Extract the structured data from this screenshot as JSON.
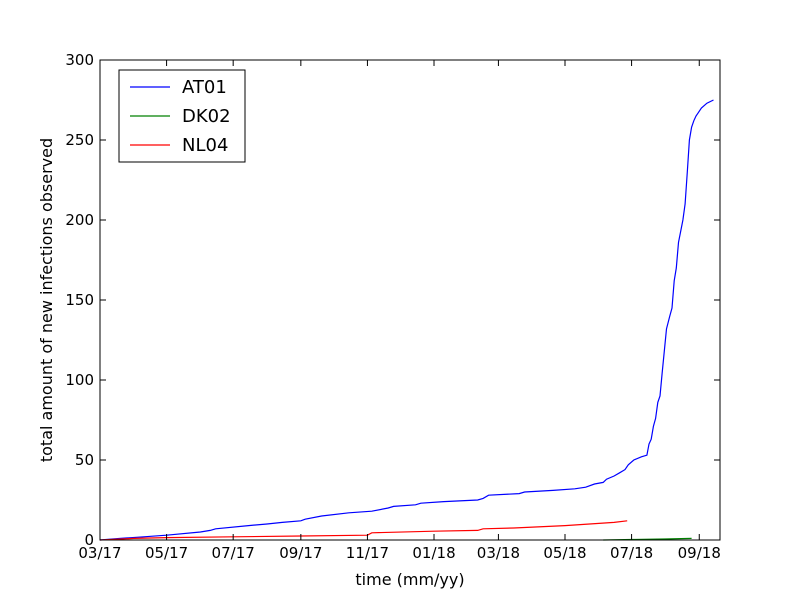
{
  "chart_data": {
    "type": "line",
    "title": "",
    "xlabel": "time (mm/yy)",
    "ylabel": "total amount of new infections observed",
    "x_axis": {
      "ticks": [
        "2017-03-01",
        "2017-05-01",
        "2017-07-01",
        "2017-09-01",
        "2017-11-01",
        "2018-01-01",
        "2018-03-01",
        "2018-05-01",
        "2018-07-01",
        "2018-09-01"
      ],
      "tick_labels": [
        "03/17",
        "05/17",
        "07/17",
        "09/17",
        "11/17",
        "01/18",
        "03/18",
        "05/18",
        "07/18",
        "09/18"
      ],
      "range": [
        "2017-03-01",
        "2018-09-20"
      ]
    },
    "y_axis": {
      "ticks": [
        0,
        50,
        100,
        150,
        200,
        250,
        300
      ],
      "tick_labels": [
        "0",
        "50",
        "100",
        "150",
        "200",
        "250",
        "300"
      ],
      "range": [
        0,
        300
      ]
    },
    "grid": false,
    "legend": {
      "placement": "top-left",
      "frame": true
    },
    "series": [
      {
        "name": "AT01",
        "color": "#0000ff",
        "points": [
          [
            "2017-03-01",
            0
          ],
          [
            "2017-03-20",
            1
          ],
          [
            "2017-04-10",
            2
          ],
          [
            "2017-05-01",
            3
          ],
          [
            "2017-06-01",
            5
          ],
          [
            "2017-06-10",
            6
          ],
          [
            "2017-06-15",
            7
          ],
          [
            "2017-07-15",
            9
          ],
          [
            "2017-08-01",
            10
          ],
          [
            "2017-08-15",
            11
          ],
          [
            "2017-09-01",
            12
          ],
          [
            "2017-09-05",
            13
          ],
          [
            "2017-09-20",
            15
          ],
          [
            "2017-10-15",
            17
          ],
          [
            "2017-11-05",
            18
          ],
          [
            "2017-11-20",
            20
          ],
          [
            "2017-11-25",
            21
          ],
          [
            "2017-12-15",
            22
          ],
          [
            "2017-12-20",
            23
          ],
          [
            "2018-01-10",
            24
          ],
          [
            "2018-02-10",
            25
          ],
          [
            "2018-02-15",
            26
          ],
          [
            "2018-02-20",
            28
          ],
          [
            "2018-03-20",
            29
          ],
          [
            "2018-03-25",
            30
          ],
          [
            "2018-04-20",
            31
          ],
          [
            "2018-05-10",
            32
          ],
          [
            "2018-05-20",
            33
          ],
          [
            "2018-05-28",
            35
          ],
          [
            "2018-06-05",
            36
          ],
          [
            "2018-06-08",
            38
          ],
          [
            "2018-06-15",
            40
          ],
          [
            "2018-06-20",
            42
          ],
          [
            "2018-06-25",
            44
          ],
          [
            "2018-06-28",
            47
          ],
          [
            "2018-07-03",
            50
          ],
          [
            "2018-07-10",
            52
          ],
          [
            "2018-07-15",
            53
          ],
          [
            "2018-07-17",
            60
          ],
          [
            "2018-07-19",
            63
          ],
          [
            "2018-07-21",
            71
          ],
          [
            "2018-07-23",
            76
          ],
          [
            "2018-07-25",
            86
          ],
          [
            "2018-07-27",
            90
          ],
          [
            "2018-07-29",
            104
          ],
          [
            "2018-07-31",
            118
          ],
          [
            "2018-08-02",
            132
          ],
          [
            "2018-08-05",
            140
          ],
          [
            "2018-08-07",
            145
          ],
          [
            "2018-08-09",
            162
          ],
          [
            "2018-08-11",
            170
          ],
          [
            "2018-08-13",
            186
          ],
          [
            "2018-08-15",
            193
          ],
          [
            "2018-08-17",
            200
          ],
          [
            "2018-08-19",
            210
          ],
          [
            "2018-08-21",
            230
          ],
          [
            "2018-08-23",
            250
          ],
          [
            "2018-08-25",
            258
          ],
          [
            "2018-08-27",
            262
          ],
          [
            "2018-08-29",
            265
          ],
          [
            "2018-08-31",
            267
          ],
          [
            "2018-09-03",
            270
          ],
          [
            "2018-09-08",
            273
          ],
          [
            "2018-09-14",
            275
          ]
        ]
      },
      {
        "name": "DK02",
        "color": "#008000",
        "points": [
          [
            "2018-06-05",
            0
          ],
          [
            "2018-07-01",
            0.3
          ],
          [
            "2018-08-01",
            0.6
          ],
          [
            "2018-08-25",
            1
          ]
        ]
      },
      {
        "name": "NL04",
        "color": "#ff0000",
        "points": [
          [
            "2017-03-01",
            0
          ],
          [
            "2017-04-01",
            1
          ],
          [
            "2017-05-01",
            1.5
          ],
          [
            "2017-07-01",
            2
          ],
          [
            "2017-09-01",
            2.5
          ],
          [
            "2017-11-01",
            3
          ],
          [
            "2017-11-05",
            4.5
          ],
          [
            "2018-01-01",
            5.5
          ],
          [
            "2018-02-10",
            6
          ],
          [
            "2018-02-15",
            7
          ],
          [
            "2018-03-15",
            7.5
          ],
          [
            "2018-05-01",
            9
          ],
          [
            "2018-06-15",
            11
          ],
          [
            "2018-06-27",
            12
          ]
        ]
      }
    ]
  }
}
